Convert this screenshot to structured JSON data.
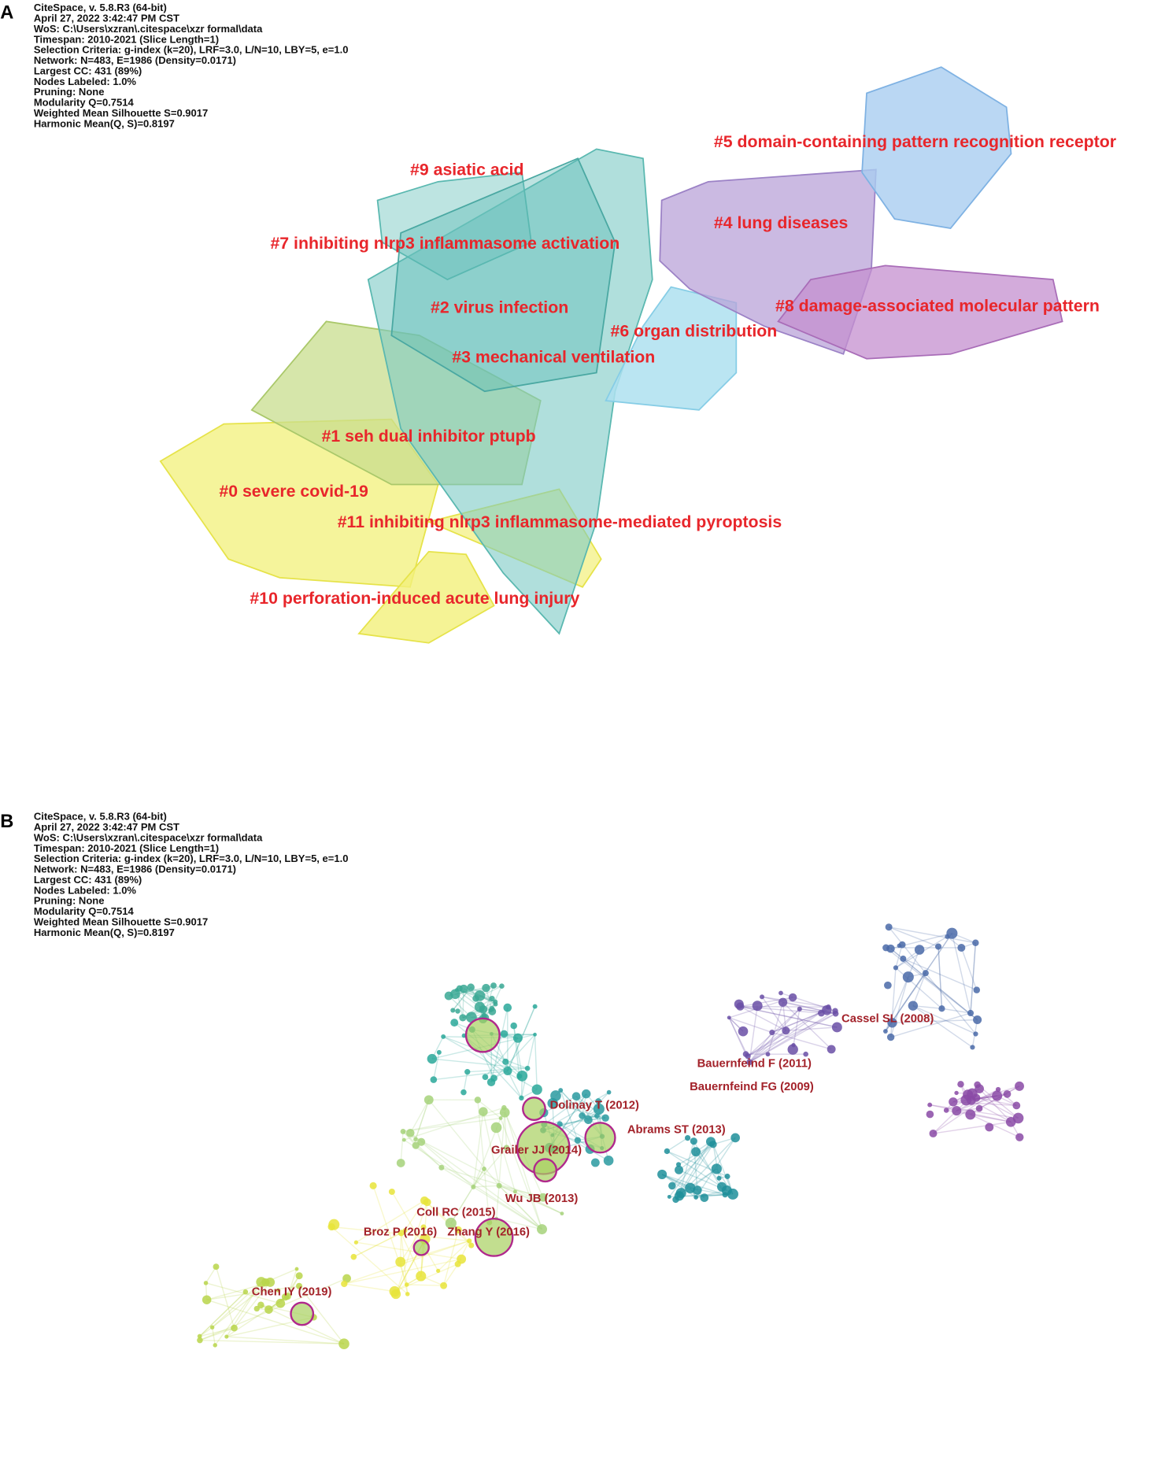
{
  "panel_a": {
    "label": "A",
    "info": [
      "CiteSpace, v. 5.8.R3 (64-bit)",
      "April 27, 2022 3:42:47 PM CST",
      "WoS: C:\\Users\\xzran\\.citespace\\xzr formal\\data",
      "Timespan: 2010-2021 (Slice Length=1)",
      "Selection Criteria: g-index (k=20), LRF=3.0, L/N=10, LBY=5, e=1.0",
      "Network: N=483, E=1986 (Density=0.0171)",
      "Largest CC: 431 (89%)",
      "Nodes Labeled: 1.0%",
      "Pruning: None",
      "Modularity Q=0.7514",
      "Weighted Mean Silhouette S=0.9017",
      "Harmonic Mean(Q, S)=0.8197"
    ],
    "clusters": [
      "#9 asiatic acid",
      "#5 domain-containing pattern recognition receptor",
      "#4 lung diseases",
      "#7 inhibiting nlrp3 inflammasome activation",
      "#2 virus infection",
      "#8 damage-associated molecular pattern",
      "#6 organ distribution",
      "#3 mechanical ventilation",
      "#1 seh dual inhibitor ptupb",
      "#0 severe covid-19",
      "#11 inhibiting nlrp3 inflammasome-mediated pyroptosis",
      "#10 perforation-induced acute lung injury"
    ]
  },
  "panel_b": {
    "label": "B",
    "info": [
      "CiteSpace, v. 5.8.R3 (64-bit)",
      "April 27, 2022 3:42:47 PM CST",
      "WoS: C:\\Users\\xzran\\.citespace\\xzr formal\\data",
      "Timespan: 2010-2021 (Slice Length=1)",
      "Selection Criteria: g-index (k=20), LRF=3.0, L/N=10, LBY=5, e=1.0",
      "Network: N=483, E=1986 (Density=0.0171)",
      "Largest CC: 431 (89%)",
      "Nodes Labeled: 1.0%",
      "Pruning: None",
      "Modularity Q=0.7514",
      "Weighted Mean Silhouette S=0.9017",
      "Harmonic Mean(Q, S)=0.8197"
    ],
    "nodes": [
      "Cassel SL (2008)",
      "Bauernfeind F (2011)",
      "Bauernfeind FG (2009)",
      "Dolinay T (2012)",
      "Abrams ST (2013)",
      "Grailer JJ (2014)",
      "Wu JB (2013)",
      "Coll RC (2015)",
      "Broz P (2016)",
      "Zhang Y (2016)",
      "Chen IY (2019)"
    ]
  }
}
